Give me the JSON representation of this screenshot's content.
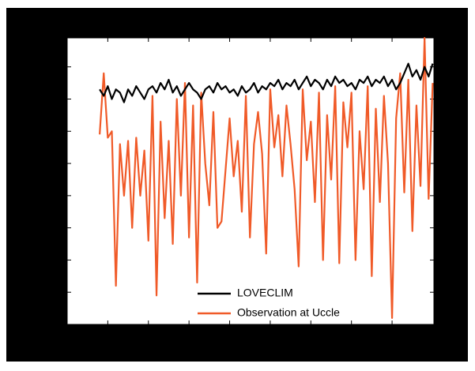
{
  "chart_data": {
    "type": "line",
    "x": [
      0.8,
      0.9,
      1.0,
      1.1,
      1.2,
      1.3,
      1.4,
      1.5,
      1.6,
      1.7,
      1.8,
      1.9,
      2.0,
      2.1,
      2.2,
      2.3,
      2.4,
      2.5,
      2.6,
      2.7,
      2.8,
      2.9,
      3.0,
      3.1,
      3.2,
      3.3,
      3.4,
      3.5,
      3.6,
      3.7,
      3.8,
      3.9,
      4.0,
      4.1,
      4.2,
      4.3,
      4.4,
      4.5,
      4.6,
      4.7,
      4.8,
      4.9,
      5.0,
      5.1,
      5.2,
      5.3,
      5.4,
      5.5,
      5.6,
      5.7,
      5.8,
      5.9,
      6.0,
      6.1,
      6.2,
      6.3,
      6.4,
      6.5,
      6.6,
      6.7,
      6.8,
      6.9,
      7.0,
      7.1,
      7.2,
      7.3,
      7.4,
      7.5,
      7.6,
      7.7,
      7.8,
      7.9,
      8.0,
      8.1,
      8.2,
      8.3,
      8.4,
      8.5,
      8.6,
      8.7,
      8.8,
      8.9,
      9.0
    ],
    "series": [
      {
        "name": "LOVECLIM",
        "color": "#000000",
        "values": [
          7.3,
          7.1,
          7.4,
          7.0,
          7.3,
          7.2,
          6.9,
          7.3,
          7.1,
          7.4,
          7.2,
          7.0,
          7.3,
          7.4,
          7.2,
          7.5,
          7.3,
          7.6,
          7.2,
          7.4,
          7.1,
          7.3,
          7.5,
          7.3,
          7.2,
          7.0,
          7.3,
          7.4,
          7.2,
          7.5,
          7.3,
          7.4,
          7.2,
          7.3,
          7.1,
          7.4,
          7.2,
          7.3,
          7.5,
          7.2,
          7.4,
          7.3,
          7.5,
          7.4,
          7.6,
          7.3,
          7.5,
          7.4,
          7.6,
          7.3,
          7.5,
          7.7,
          7.4,
          7.6,
          7.5,
          7.3,
          7.6,
          7.4,
          7.7,
          7.5,
          7.6,
          7.4,
          7.5,
          7.3,
          7.6,
          7.5,
          7.7,
          7.4,
          7.6,
          7.5,
          7.7,
          7.4,
          7.6,
          7.3,
          7.5,
          7.8,
          8.1,
          7.7,
          7.9,
          7.6,
          8.0,
          7.7,
          8.1
        ]
      },
      {
        "name": "Observation at Uccle",
        "color": "#f05a28",
        "values": [
          5.9,
          7.8,
          5.8,
          6.0,
          1.2,
          5.6,
          4.0,
          5.7,
          3.0,
          5.8,
          4.0,
          5.4,
          2.6,
          7.1,
          0.9,
          6.3,
          3.3,
          5.7,
          2.5,
          7.0,
          4.0,
          7.5,
          2.7,
          6.8,
          1.3,
          7.2,
          5.0,
          3.7,
          6.6,
          3.0,
          3.2,
          4.8,
          6.4,
          4.6,
          5.7,
          3.5,
          7.1,
          2.7,
          5.6,
          6.6,
          5.3,
          2.2,
          7.3,
          5.5,
          6.5,
          4.6,
          6.8,
          5.6,
          4.2,
          1.8,
          7.3,
          5.1,
          6.3,
          3.8,
          7.2,
          2.0,
          6.5,
          4.5,
          7.4,
          1.9,
          6.9,
          5.5,
          7.2,
          2.0,
          6.0,
          4.2,
          7.4,
          1.5,
          6.7,
          3.8,
          7.1,
          5.0,
          0.2,
          6.4,
          7.8,
          4.1,
          7.6,
          2.9,
          6.8,
          4.3,
          8.9,
          3.9,
          7.5
        ]
      }
    ],
    "xlim": [
      0,
      9.03
    ],
    "xticks": [
      1,
      2,
      3,
      4,
      5,
      6,
      7,
      8
    ],
    "ylim": [
      0,
      8.9
    ],
    "yticks": [
      1,
      2,
      3,
      4,
      5,
      6,
      7,
      8
    ]
  }
}
